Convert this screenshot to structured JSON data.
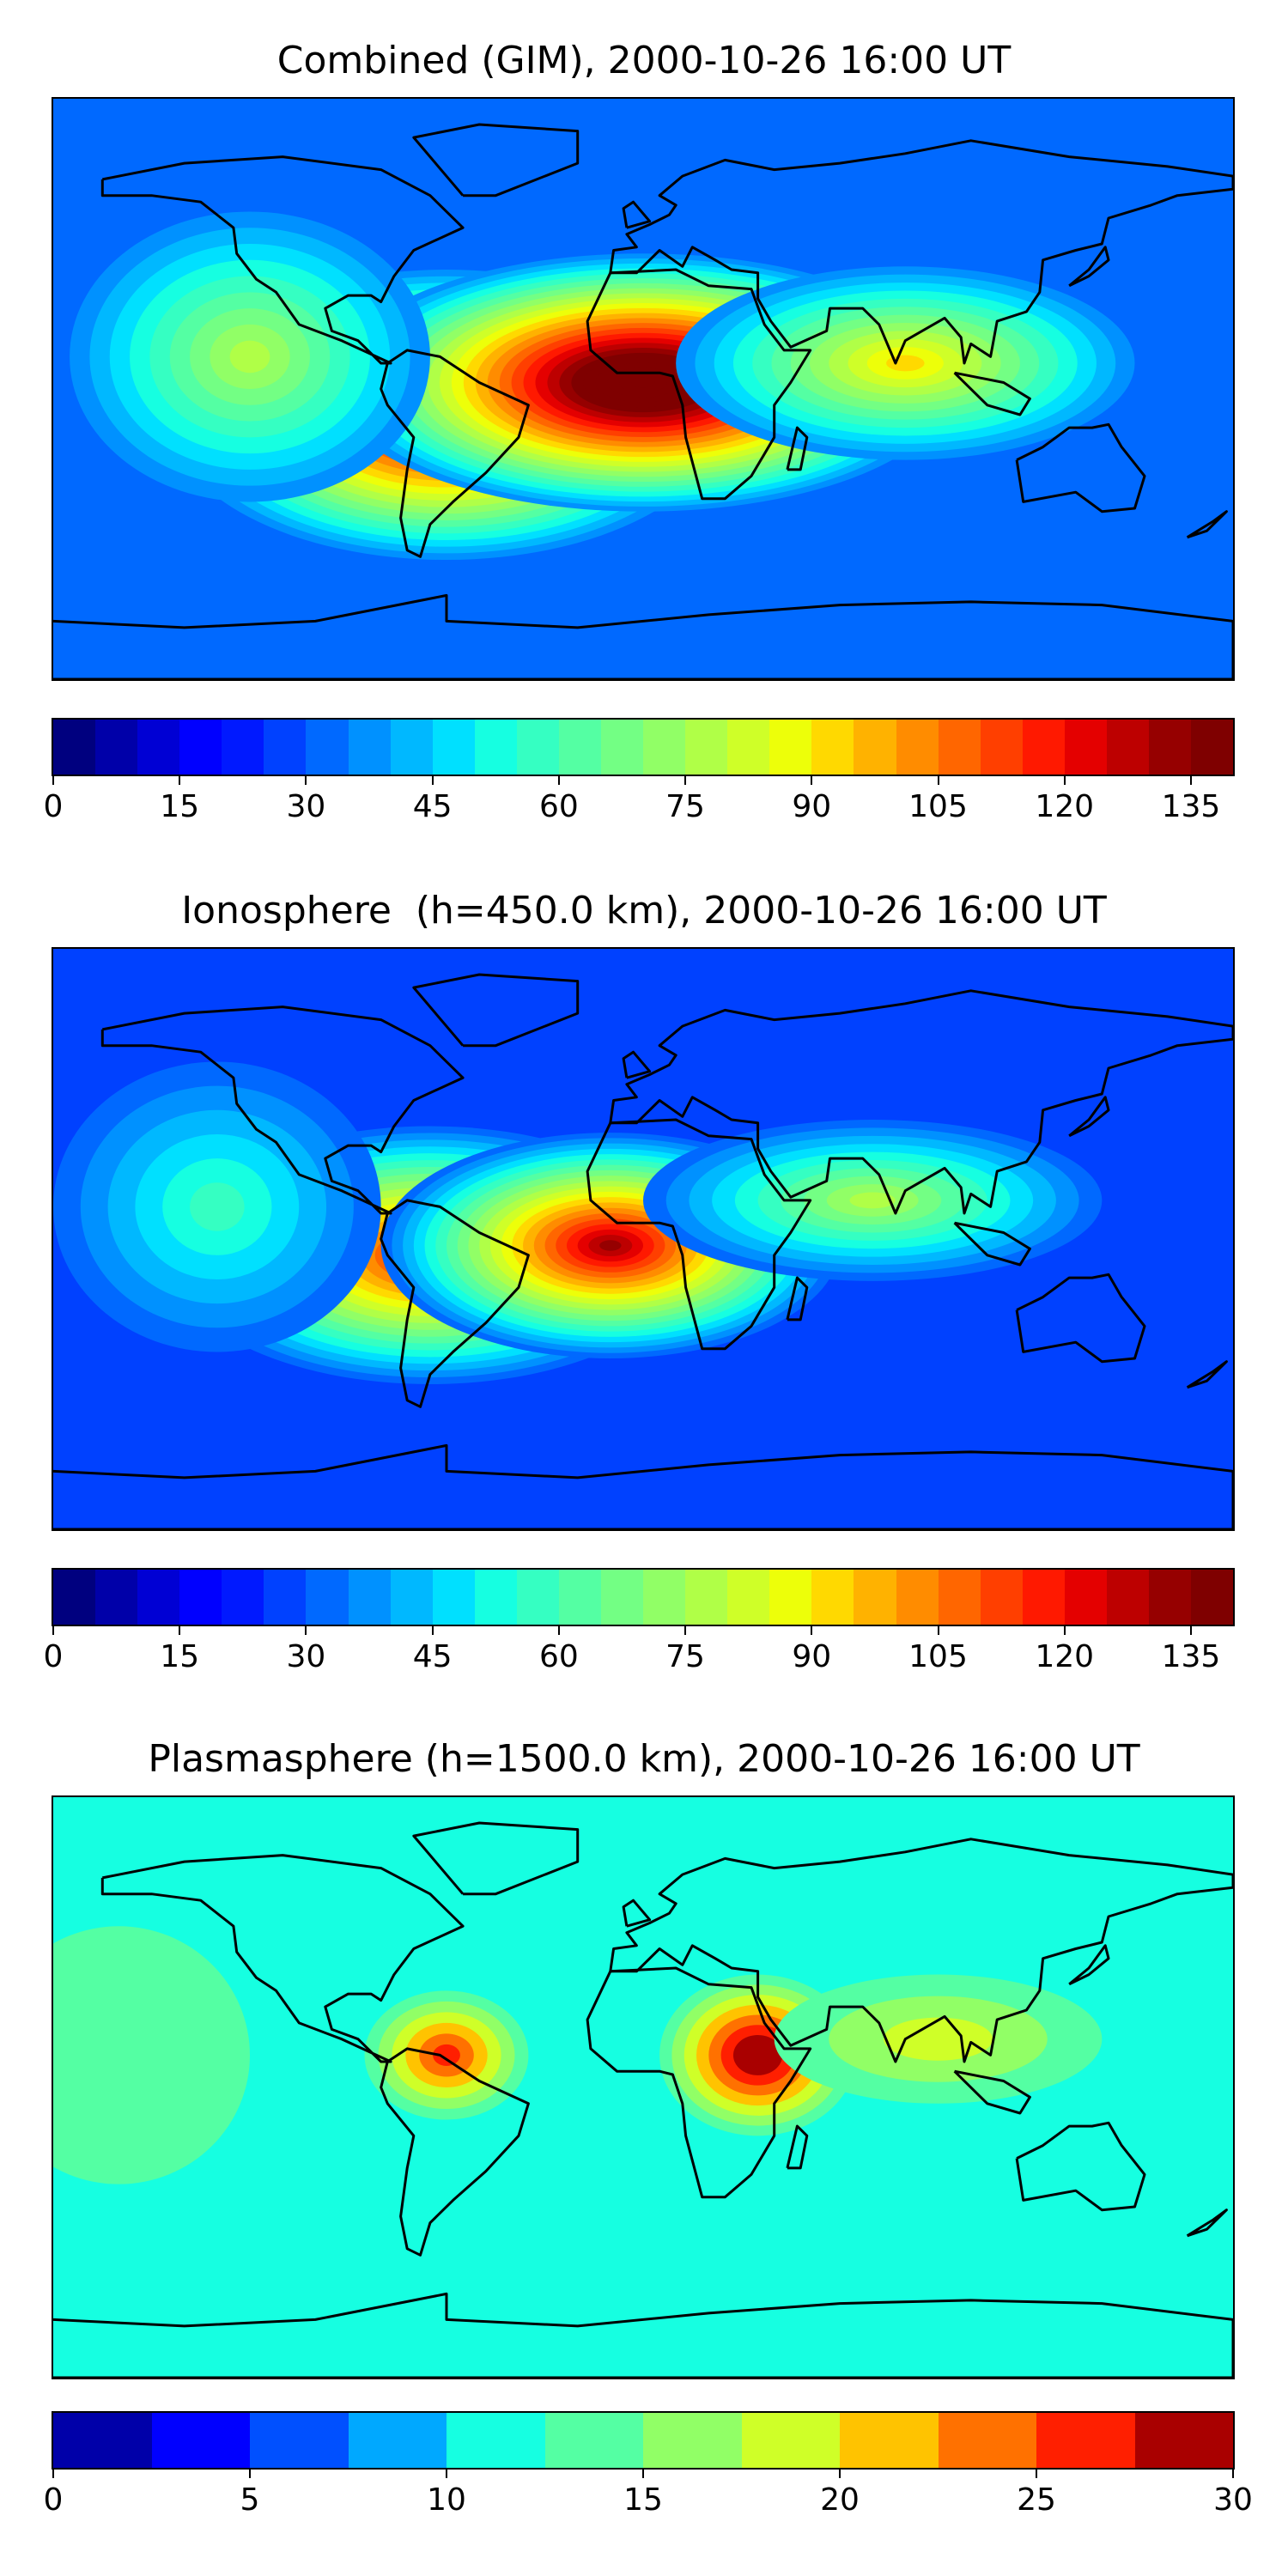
{
  "colors": {
    "jet28": [
      "#00007f",
      "#0000a9",
      "#0000d4",
      "#0000ff",
      "#0019ff",
      "#0041ff",
      "#0069ff",
      "#0091ff",
      "#00b8ff",
      "#00e0ff",
      "#16ffe1",
      "#35ffc2",
      "#54ffa3",
      "#73ff84",
      "#91ff66",
      "#b0ff47",
      "#cfff28",
      "#edff09",
      "#ffd900",
      "#ffb200",
      "#ff8c00",
      "#ff6600",
      "#ff3f00",
      "#ff1900",
      "#e40000",
      "#bd0000",
      "#960000",
      "#7f0000"
    ],
    "jet12": [
      "#0000a9",
      "#0000ff",
      "#0050ff",
      "#00a8ff",
      "#16ffe1",
      "#54ffa3",
      "#91ff66",
      "#cfff28",
      "#ffc300",
      "#ff7100",
      "#ff1f00",
      "#a90000"
    ]
  },
  "panels": [
    {
      "id": "gim",
      "title": "Combined (GIM), 2000-10-26 16:00 UT",
      "colorbar": {
        "min": 0,
        "max": 140,
        "levels": 28,
        "ticks": [
          0,
          15,
          30,
          45,
          60,
          75,
          90,
          105,
          120,
          135
        ],
        "labels": [
          "0",
          "15",
          "30",
          "45",
          "60",
          "75",
          "90",
          "105",
          "120",
          "135"
        ]
      },
      "background_level": 6,
      "field": [
        {
          "lon": -60,
          "lat": -8,
          "peak": 22,
          "rx": 85,
          "ry": 45
        },
        {
          "lon": 0,
          "lat": 2,
          "peak": 26,
          "rx": 95,
          "ry": 40
        },
        {
          "lon": 80,
          "lat": 8,
          "peak": 12,
          "rx": 70,
          "ry": 30
        },
        {
          "lon": -120,
          "lat": 10,
          "peak": 9,
          "rx": 55,
          "ry": 45
        }
      ]
    },
    {
      "id": "iono",
      "title": "Ionosphere  (h=450.0 km), 2000-10-26 16:00 UT",
      "colorbar": {
        "min": 0,
        "max": 140,
        "levels": 28,
        "ticks": [
          0,
          15,
          30,
          45,
          60,
          75,
          90,
          105,
          120,
          135
        ],
        "labels": [
          "0",
          "15",
          "30",
          "45",
          "60",
          "75",
          "90",
          "105",
          "120",
          "135"
        ]
      },
      "background_level": 5,
      "field": [
        {
          "lon": -65,
          "lat": -5,
          "peak": 19,
          "rx": 80,
          "ry": 40
        },
        {
          "lon": -10,
          "lat": -2,
          "peak": 21,
          "rx": 70,
          "ry": 35
        },
        {
          "lon": 70,
          "lat": 12,
          "peak": 10,
          "rx": 70,
          "ry": 25
        },
        {
          "lon": -130,
          "lat": 10,
          "peak": 6,
          "rx": 50,
          "ry": 45
        }
      ]
    },
    {
      "id": "plasma",
      "title": "Plasmasphere (h=1500.0 km), 2000-10-26 16:00 UT",
      "colorbar": {
        "min": 0,
        "max": 30,
        "levels": 12,
        "ticks": [
          0,
          5,
          10,
          15,
          20,
          25,
          30
        ],
        "labels": [
          "0",
          "5",
          "10",
          "15",
          "20",
          "25",
          "30"
        ]
      },
      "background_level": 4,
      "field": [
        {
          "lon": 35,
          "lat": 10,
          "peak": 8,
          "rx": 30,
          "ry": 25
        },
        {
          "lon": -60,
          "lat": 10,
          "peak": 6,
          "rx": 25,
          "ry": 20
        },
        {
          "lon": 90,
          "lat": 15,
          "peak": 3,
          "rx": 50,
          "ry": 20
        },
        {
          "lon": -160,
          "lat": 10,
          "peak": 1,
          "rx": 40,
          "ry": 40
        }
      ]
    }
  ]
}
